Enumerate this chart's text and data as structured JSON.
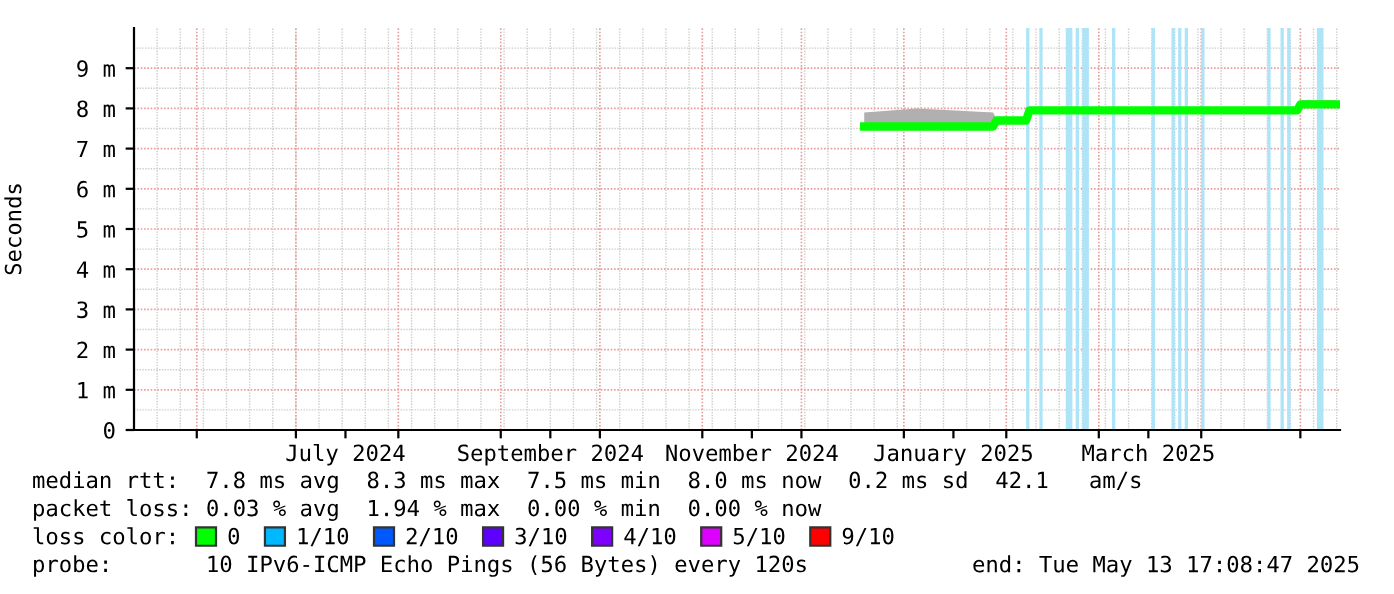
{
  "chart_data": {
    "type": "line",
    "ylabel": "Seconds",
    "x": [
      "2024-12-20",
      "2025-01-05",
      "2025-01-28",
      "2025-01-29",
      "2025-02-07",
      "2025-02-08",
      "2025-03-01",
      "2025-04-01",
      "2025-04-30",
      "2025-05-01",
      "2025-05-12"
    ],
    "series": [
      {
        "name": "0",
        "color": "#00ff00",
        "values": [
          7.55,
          7.55,
          7.55,
          7.7,
          7.7,
          7.95,
          7.95,
          7.95,
          7.95,
          8.1,
          8.1
        ],
        "lower": [
          7.5,
          7.5,
          7.5,
          7.65,
          7.65,
          7.9,
          7.9,
          7.9,
          7.9,
          8.05,
          8.05
        ],
        "upper": [
          7.9,
          8.0,
          7.9,
          7.75,
          7.75,
          8.0,
          8.0,
          8.0,
          8.0,
          8.2,
          8.2
        ]
      },
      {
        "name": "1/10",
        "color": "#00b8ff",
        "values": [
          null,
          null,
          null,
          null,
          null,
          null,
          null,
          null,
          null,
          null,
          null
        ]
      },
      {
        "name": "2/10",
        "color": "#0059ff",
        "values": [
          null,
          null,
          null,
          null,
          null,
          null,
          null,
          null,
          null,
          null,
          null
        ]
      },
      {
        "name": "3/10",
        "color": "#5e00ff",
        "values": [
          null,
          null,
          null,
          null,
          null,
          null,
          null,
          null,
          null,
          null,
          null
        ]
      },
      {
        "name": "4/10",
        "color": "#7e00ff",
        "values": [
          null,
          null,
          null,
          null,
          null,
          null,
          null,
          null,
          null,
          null,
          null
        ]
      },
      {
        "name": "5/10",
        "color": "#dd00ff",
        "values": [
          null,
          null,
          null,
          null,
          null,
          null,
          null,
          null,
          null,
          null,
          null
        ]
      },
      {
        "name": "9/10",
        "color": "#ff0000",
        "values": [
          null,
          null,
          null,
          null,
          null,
          null,
          null,
          null,
          null,
          null,
          null
        ]
      }
    ],
    "xlim": [
      "2024-05-13",
      "2025-05-13"
    ],
    "xticks": [
      {
        "value": "2024-06-01",
        "label": null
      },
      {
        "value": "2024-07-01",
        "label": null
      },
      {
        "value": "2024-07-16",
        "label": "July 2024"
      },
      {
        "value": "2024-08-01",
        "label": null
      },
      {
        "value": "2024-09-01",
        "label": null
      },
      {
        "value": "2024-09-16",
        "label": "September 2024"
      },
      {
        "value": "2024-10-01",
        "label": null
      },
      {
        "value": "2024-11-01",
        "label": null
      },
      {
        "value": "2024-11-16",
        "label": "November 2024"
      },
      {
        "value": "2024-12-01",
        "label": null
      },
      {
        "value": "2025-01-01",
        "label": null
      },
      {
        "value": "2025-01-16",
        "label": "January 2025"
      },
      {
        "value": "2025-02-01",
        "label": null
      },
      {
        "value": "2025-03-01",
        "label": null
      },
      {
        "value": "2025-03-16",
        "label": "March 2025"
      },
      {
        "value": "2025-04-01",
        "label": null
      },
      {
        "value": "2025-05-01",
        "label": null
      }
    ],
    "ylim": [
      0,
      10
    ],
    "yticks": [
      {
        "value": 0,
        "label": "0"
      },
      {
        "value": 1,
        "label": "1 m"
      },
      {
        "value": 2,
        "label": "2 m"
      },
      {
        "value": 3,
        "label": "3 m"
      },
      {
        "value": 4,
        "label": "4 m"
      },
      {
        "value": 5,
        "label": "5 m"
      },
      {
        "value": 6,
        "label": "6 m"
      },
      {
        "value": 7,
        "label": "7 m"
      },
      {
        "value": 8,
        "label": "8 m"
      },
      {
        "value": 9,
        "label": "9 m"
      }
    ],
    "bands": [
      {
        "axis": "x",
        "from": "2025-02-07",
        "to": "2025-02-08",
        "color": "#aee4f7"
      },
      {
        "axis": "x",
        "from": "2025-02-11",
        "to": "2025-02-12",
        "color": "#aee4f7"
      },
      {
        "axis": "x",
        "from": "2025-02-19",
        "to": "2025-02-21",
        "color": "#aee4f7"
      },
      {
        "axis": "x",
        "from": "2025-02-22",
        "to": "2025-02-23",
        "color": "#aee4f7"
      },
      {
        "axis": "x",
        "from": "2025-02-24",
        "to": "2025-02-26",
        "color": "#aee4f7"
      },
      {
        "axis": "x",
        "from": "2025-03-05",
        "to": "2025-03-06",
        "color": "#aee4f7"
      },
      {
        "axis": "x",
        "from": "2025-03-17",
        "to": "2025-03-18",
        "color": "#aee4f7"
      },
      {
        "axis": "x",
        "from": "2025-03-23",
        "to": "2025-03-24",
        "color": "#aee4f7"
      },
      {
        "axis": "x",
        "from": "2025-03-25",
        "to": "2025-03-26",
        "color": "#aee4f7"
      },
      {
        "axis": "x",
        "from": "2025-03-27",
        "to": "2025-03-28",
        "color": "#aee4f7"
      },
      {
        "axis": "x",
        "from": "2025-04-01",
        "to": "2025-04-02",
        "color": "#aee4f7"
      },
      {
        "axis": "x",
        "from": "2025-04-21",
        "to": "2025-04-22",
        "color": "#aee4f7"
      },
      {
        "axis": "x",
        "from": "2025-04-25",
        "to": "2025-04-26",
        "color": "#aee4f7"
      },
      {
        "axis": "x",
        "from": "2025-04-27",
        "to": "2025-04-28",
        "color": "#aee4f7"
      },
      {
        "axis": "x",
        "from": "2025-05-06",
        "to": "2025-05-08",
        "color": "#aee4f7"
      }
    ],
    "grid": true,
    "legend": "bottom",
    "annotations": [
      "median rtt:  7.8 ms avg  8.3 ms max  7.5 ms min  8.0 ms now  0.2 ms sd  42.1   am/s",
      "packet loss: 0.03 % avg  1.94 % max  0.00 % min  0.00 % now",
      "loss color:",
      "probe:       10 IPv6-ICMP Echo Pings (56 Bytes) every 120s",
      "end: Tue May 13 17:08:47 2025"
    ]
  }
}
